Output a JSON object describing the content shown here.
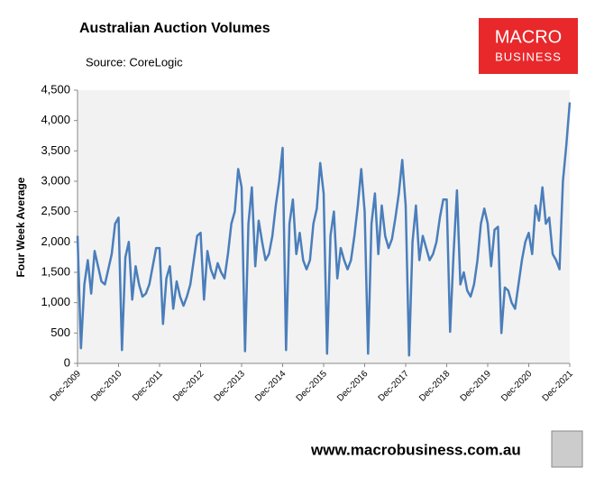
{
  "chart_data": {
    "type": "line",
    "title": "Australian Auction Volumes",
    "subtitle": "Source: CoreLogic",
    "y_label": "Four Week Average",
    "categories": [
      "Dec-2009",
      null,
      null,
      null,
      null,
      null,
      null,
      null,
      null,
      null,
      null,
      null,
      "Dec-2010",
      null,
      null,
      null,
      null,
      null,
      null,
      null,
      null,
      null,
      null,
      null,
      "Dec-2011",
      null,
      null,
      null,
      null,
      null,
      null,
      null,
      null,
      null,
      null,
      null,
      "Dec-2012",
      null,
      null,
      null,
      null,
      null,
      null,
      null,
      null,
      null,
      null,
      null,
      "Dec-2013",
      null,
      null,
      null,
      null,
      null,
      null,
      null,
      null,
      null,
      null,
      null,
      "Dec-2014",
      null,
      null,
      null,
      null,
      null,
      null,
      null,
      null,
      null,
      null,
      null,
      "Dec-2015",
      null,
      null,
      null,
      null,
      null,
      null,
      null,
      null,
      null,
      null,
      null,
      "Dec-2016",
      null,
      null,
      null,
      null,
      null,
      null,
      null,
      null,
      null,
      null,
      null,
      "Dec-2017",
      null,
      null,
      null,
      null,
      null,
      null,
      null,
      null,
      null,
      null,
      null,
      "Dec-2018",
      null,
      null,
      null,
      null,
      null,
      null,
      null,
      null,
      null,
      null,
      null,
      "Dec-2019",
      null,
      null,
      null,
      null,
      null,
      null,
      null,
      null,
      null,
      null,
      null,
      "Dec-2020",
      null,
      null,
      null,
      null,
      null,
      null,
      null,
      null,
      null,
      null,
      null,
      "Dec-2021"
    ],
    "series": [
      {
        "name": "Four Week Average",
        "color": "#4a7ebb",
        "values": [
          2100,
          250,
          1300,
          1700,
          1150,
          1850,
          1600,
          1350,
          1300,
          1550,
          1800,
          2300,
          2400,
          220,
          1750,
          2000,
          1050,
          1600,
          1300,
          1100,
          1150,
          1300,
          1600,
          1900,
          1900,
          650,
          1400,
          1600,
          900,
          1350,
          1100,
          950,
          1100,
          1300,
          1700,
          2100,
          2150,
          1050,
          1850,
          1550,
          1400,
          1650,
          1500,
          1400,
          1800,
          2300,
          2500,
          3200,
          2900,
          200,
          2300,
          2900,
          1600,
          2350,
          2000,
          1700,
          1800,
          2100,
          2600,
          3000,
          3550,
          220,
          2300,
          2700,
          1800,
          2150,
          1700,
          1550,
          1700,
          2300,
          2550,
          3300,
          2800,
          160,
          2100,
          2500,
          1400,
          1900,
          1700,
          1550,
          1700,
          2100,
          2600,
          3200,
          2500,
          160,
          2300,
          2800,
          1800,
          2600,
          2100,
          1900,
          2050,
          2400,
          2800,
          3350,
          2600,
          130,
          2000,
          2600,
          1700,
          2100,
          1900,
          1700,
          1800,
          2000,
          2400,
          2700,
          2700,
          520,
          1800,
          2850,
          1300,
          1500,
          1200,
          1100,
          1300,
          1700,
          2300,
          2550,
          2300,
          1600,
          2200,
          2250,
          500,
          1250,
          1200,
          1000,
          900,
          1300,
          1700,
          2000,
          2150,
          1800,
          2600,
          2350,
          2900,
          2300,
          2400,
          1800,
          1700,
          1550,
          3000,
          3600,
          4300
        ]
      }
    ],
    "ylim": [
      0,
      4500
    ],
    "yticks": [
      0,
      500,
      {
        "value": 1000,
        "label": "1,000"
      },
      {
        "value": 1500,
        "label": "1,500"
      },
      {
        "value": 2000,
        "label": "2,000"
      },
      {
        "value": 2500,
        "label": "2,500"
      },
      {
        "value": 3000,
        "label": "3,000"
      },
      {
        "value": 3500,
        "label": "3,500"
      },
      {
        "value": 4000,
        "label": "4,000"
      },
      {
        "value": 4500,
        "label": "4,500"
      }
    ],
    "grid": false
  },
  "logo": {
    "line1": "MACRO",
    "line2": "BUSINESS"
  },
  "footer": "www.macrobusiness.com.au"
}
